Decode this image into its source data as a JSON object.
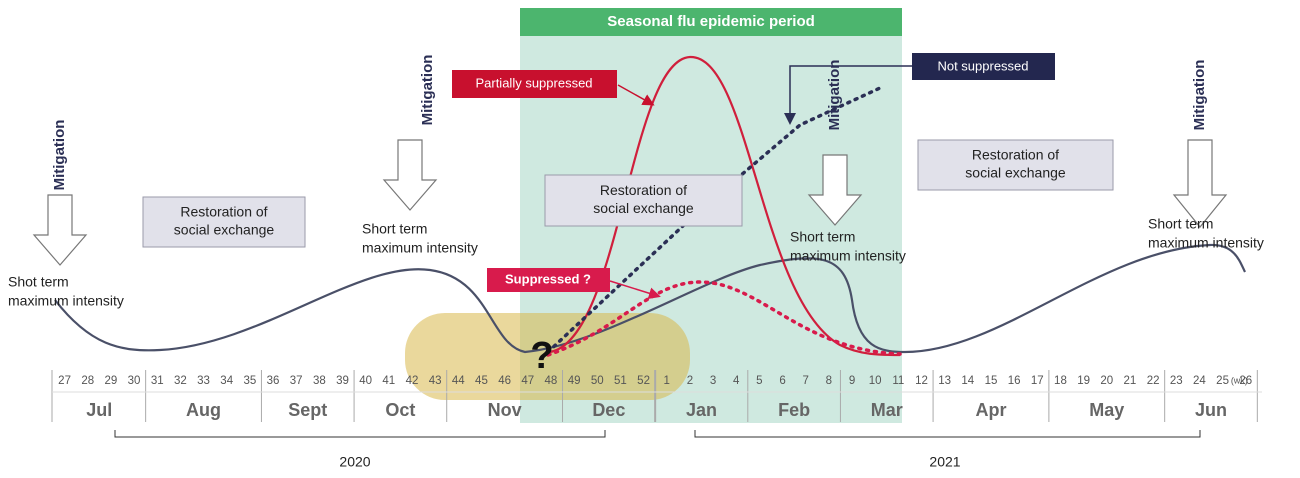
{
  "header": "Seasonal flu epidemic period",
  "mitigation": [
    "Mitigation",
    "Mitigation",
    "Mitigation",
    "Mitigation"
  ],
  "intensity": [
    [
      "Shot term",
      "maximum intensity"
    ],
    [
      "Short term",
      "maximum intensity"
    ],
    [
      "Short term",
      "maximum intensity"
    ],
    [
      "Short term",
      "maximum intensity"
    ]
  ],
  "restoration": [
    [
      "Restoration of",
      "social exchange"
    ],
    [
      "Restoration of",
      "social exchange"
    ],
    [
      "Restoration of",
      "social exchange"
    ]
  ],
  "scenarios": {
    "partial": "Partially suppressed",
    "none": "Not suppressed",
    "suppressed": "Suppressed ?"
  },
  "question": "?",
  "week_unit": "(wk)",
  "months": [
    {
      "name": "Jul",
      "weeks": [
        "27",
        "28",
        "29",
        "30"
      ]
    },
    {
      "name": "Aug",
      "weeks": [
        "31",
        "32",
        "33",
        "34",
        "35"
      ]
    },
    {
      "name": "Sept",
      "weeks": [
        "36",
        "37",
        "38",
        "39"
      ]
    },
    {
      "name": "Oct",
      "weeks": [
        "40",
        "41",
        "42",
        "43"
      ]
    },
    {
      "name": "Nov",
      "weeks": [
        "44",
        "45",
        "46",
        "47",
        "48"
      ]
    },
    {
      "name": "Dec",
      "weeks": [
        "49",
        "50",
        "51",
        "52"
      ]
    },
    {
      "name": "Jan",
      "weeks": [
        "1",
        "2",
        "3",
        "4"
      ]
    },
    {
      "name": "Feb",
      "weeks": [
        "5",
        "6",
        "7",
        "8"
      ]
    },
    {
      "name": "Mar",
      "weeks": [
        "9",
        "10",
        "11",
        "12"
      ]
    },
    {
      "name": "Apr",
      "weeks": [
        "13",
        "14",
        "15",
        "16",
        "17"
      ]
    },
    {
      "name": "May",
      "weeks": [
        "18",
        "19",
        "20",
        "21",
        "22"
      ]
    },
    {
      "name": "Jun",
      "weeks": [
        "23",
        "24",
        "25",
        "26"
      ]
    }
  ],
  "years": [
    "2020",
    "2021"
  ]
}
